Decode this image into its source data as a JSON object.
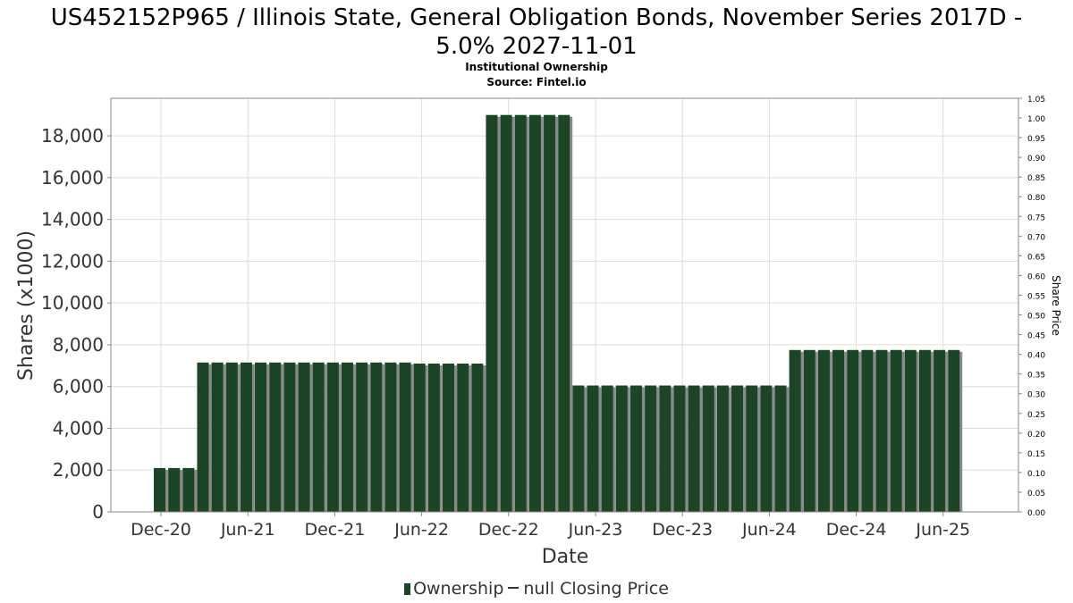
{
  "title_line1": "US452152P965 / Illinois State, General Obligation Bonds, November Series 2017D -",
  "title_line2": "5.0% 2027-11-01",
  "subtitle_line1": "Institutional Ownership",
  "subtitle_line2": "Source: Fintel.io",
  "legend": {
    "ownership": "Ownership",
    "price": "null Closing Price"
  },
  "colors": {
    "bar": "#1b4524",
    "bar_shadow": "#8a8a8a",
    "grid": "#dddddd"
  },
  "chart_data": {
    "type": "bar",
    "xlabel": "Date",
    "ylabel": "Shares (x1000)",
    "y2label": "Share Price",
    "ylim": [
      0,
      19800
    ],
    "y2lim": [
      0,
      1.05
    ],
    "yticks": [
      "0",
      "2,000",
      "4,000",
      "6,000",
      "8,000",
      "10,000",
      "12,000",
      "14,000",
      "16,000",
      "18,000"
    ],
    "y2ticks": [
      "0.00",
      "0.05",
      "0.10",
      "0.15",
      "0.20",
      "0.25",
      "0.30",
      "0.35",
      "0.40",
      "0.45",
      "0.50",
      "0.55",
      "0.60",
      "0.65",
      "0.70",
      "0.75",
      "0.80",
      "0.85",
      "0.90",
      "0.95",
      "1.00",
      "1.05"
    ],
    "xticks": [
      "Dec-20",
      "Jun-21",
      "Dec-21",
      "Jun-22",
      "Dec-22",
      "Jun-23",
      "Dec-23",
      "Jun-24",
      "Dec-24",
      "Jun-25"
    ],
    "grid": true,
    "legend_position": "bottom",
    "series": [
      {
        "name": "Ownership",
        "values": [
          2100,
          2100,
          2100,
          7150,
          7150,
          7150,
          7150,
          7150,
          7150,
          7150,
          7150,
          7150,
          7150,
          7150,
          7150,
          7150,
          7150,
          7150,
          7100,
          7100,
          7100,
          7100,
          7100,
          19000,
          19000,
          19000,
          19000,
          19000,
          19000,
          6050,
          6050,
          6050,
          6050,
          6050,
          6050,
          6050,
          6050,
          6050,
          6050,
          6050,
          6050,
          6050,
          6050,
          6050,
          7750,
          7750,
          7750,
          7750,
          7750,
          7750,
          7750,
          7750,
          7750,
          7750,
          7750,
          7750
        ]
      },
      {
        "name": "null Closing Price",
        "values": []
      }
    ]
  }
}
